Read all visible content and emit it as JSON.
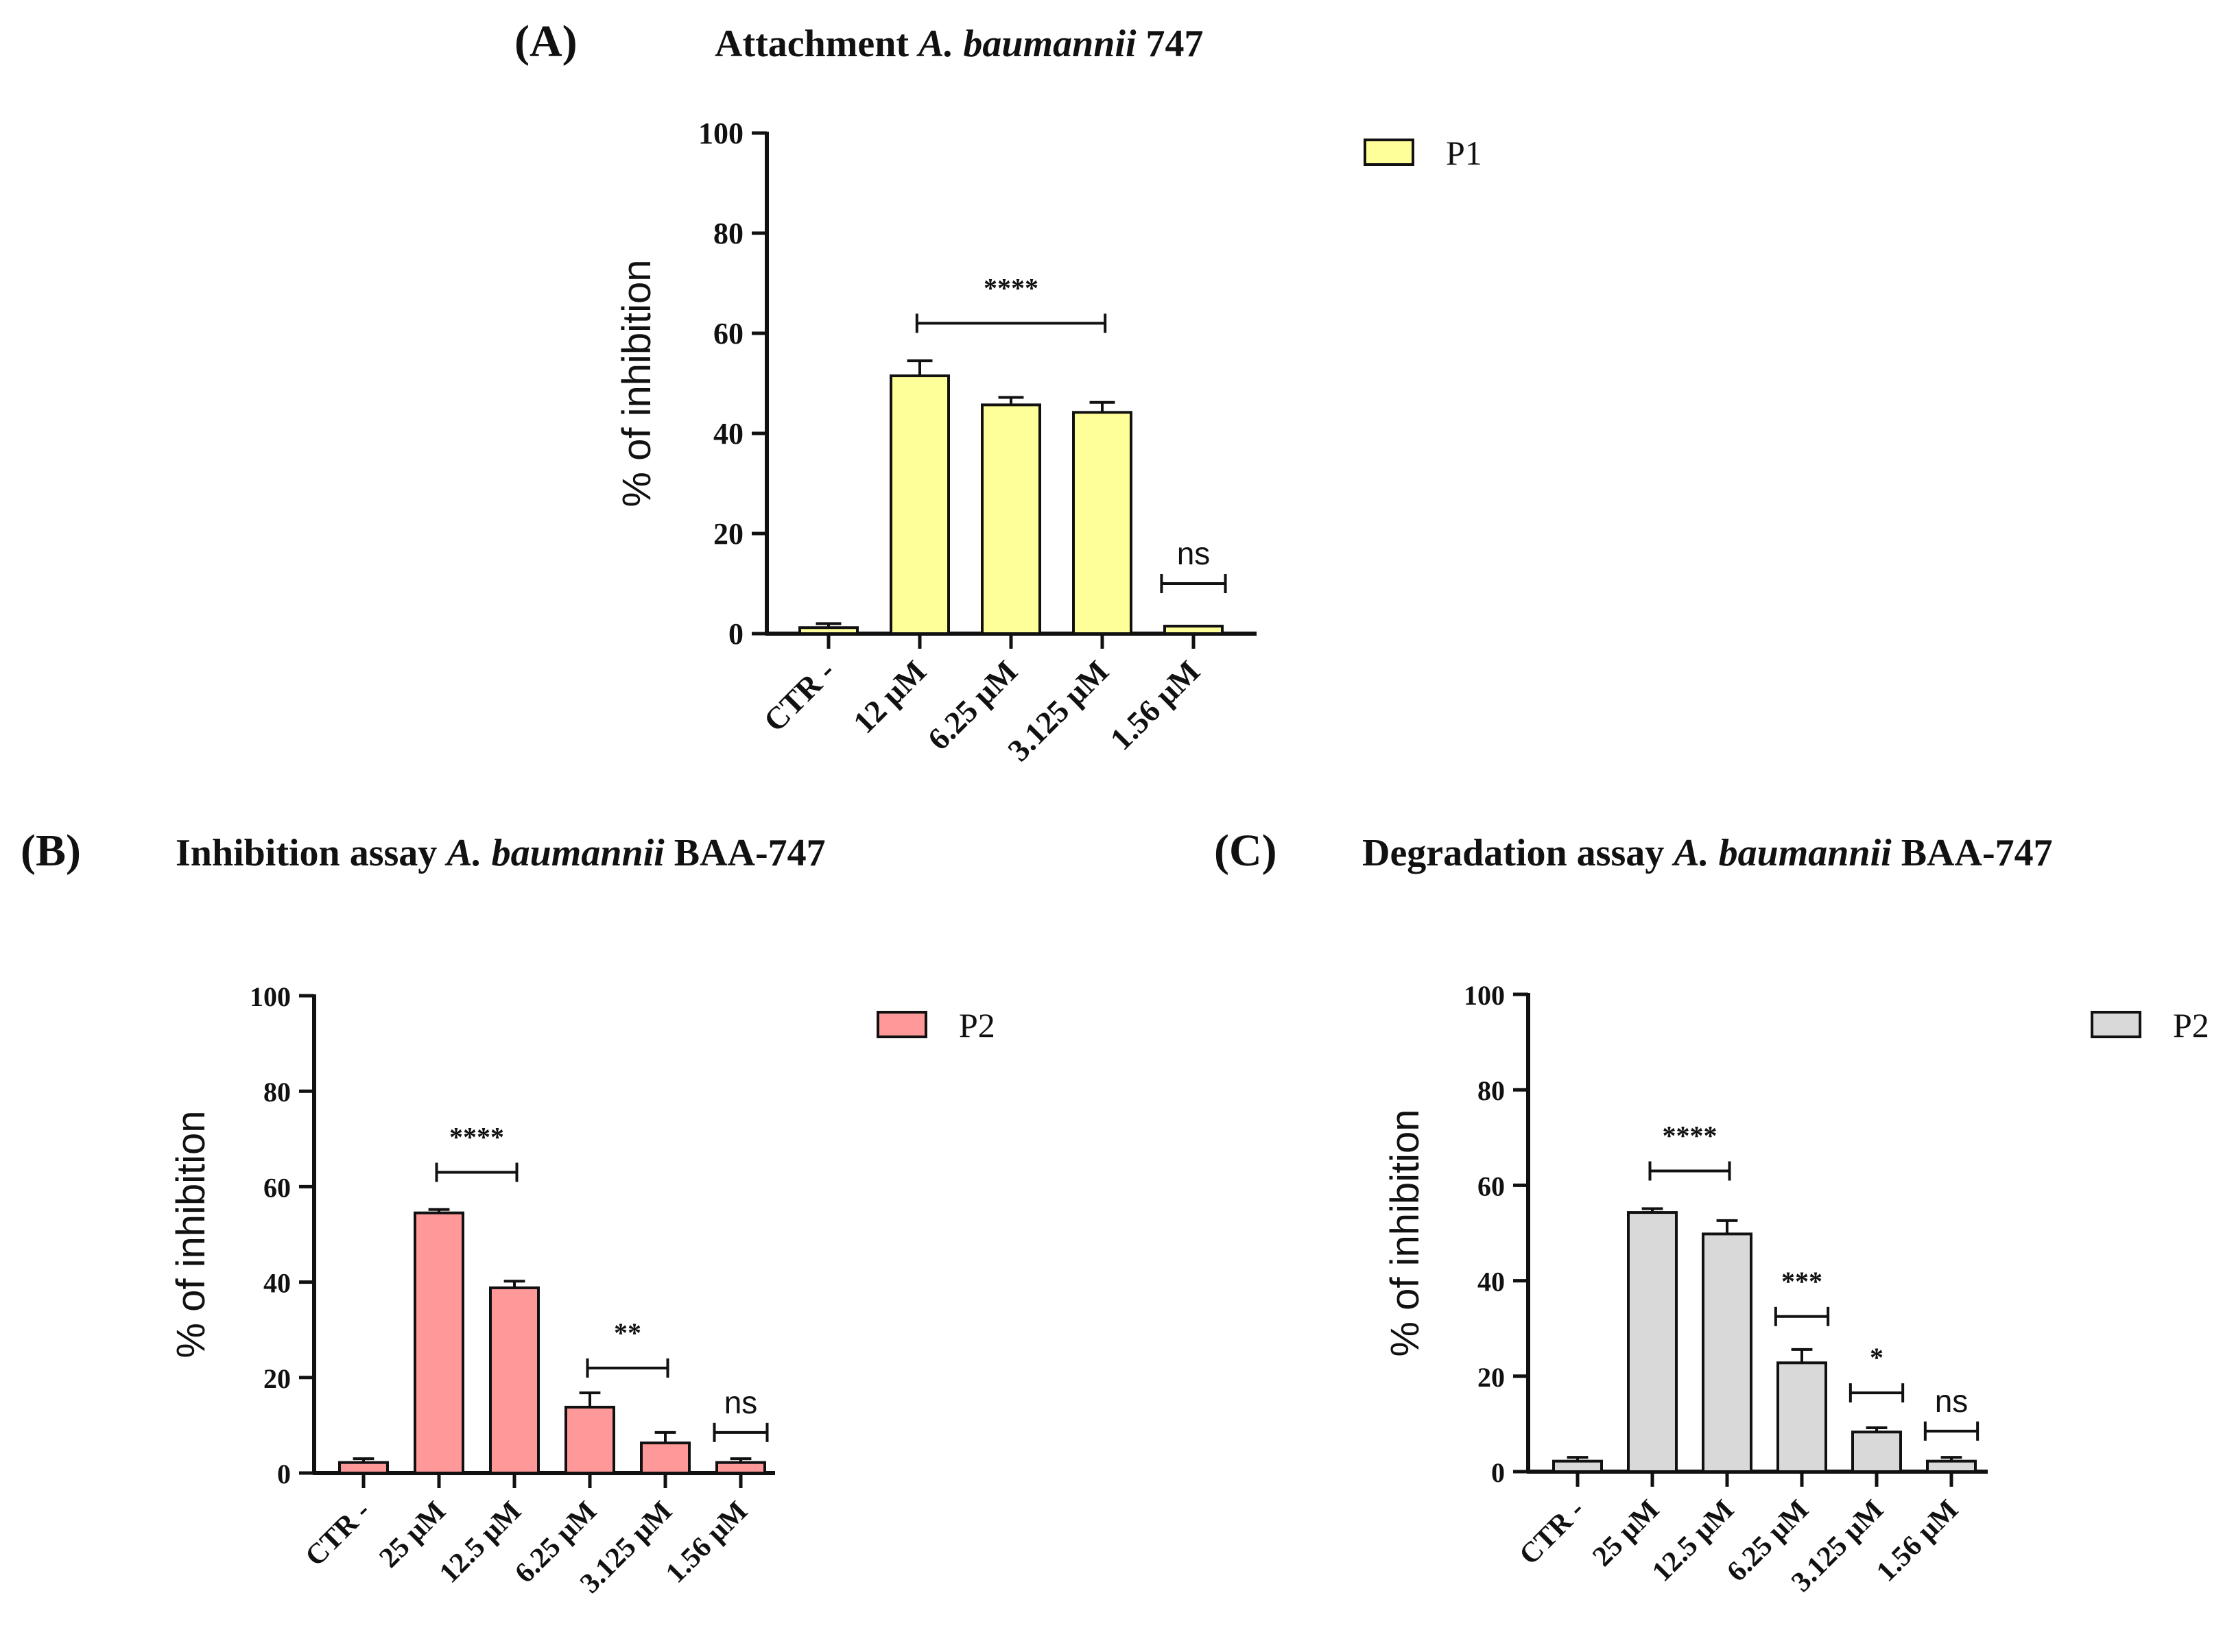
{
  "chart_data": [
    {
      "panel_label": "(A)",
      "title": "Attachment ",
      "title_italic": "A. baumannii",
      "title_suffix": " 747",
      "type": "bar",
      "ylabel": "% of inhibition",
      "ylim": [
        0,
        100
      ],
      "yticks": [
        "0",
        "20",
        "40",
        "60",
        "80",
        "100"
      ],
      "categories": [
        "CTR -",
        "12 µM",
        "6.25 µM",
        "3.125 µM",
        "1.56 µM"
      ],
      "series": [
        {
          "name": "P1",
          "color": "#ffff99",
          "values": [
            1.2,
            51.5,
            45.7,
            44.2,
            1.5
          ],
          "errors": [
            0.8,
            3.0,
            1.5,
            2.0,
            0.0
          ]
        }
      ],
      "legend": "top-right",
      "annotations": [
        {
          "text": "****",
          "from": 1,
          "to": 3,
          "y": 62
        },
        {
          "text": "ns",
          "from": 4,
          "to": 4,
          "y": 10
        }
      ]
    },
    {
      "panel_label": "(B)",
      "title": "Inhibition assay ",
      "title_italic": "A. baumannii",
      "title_suffix": " BAA-747",
      "type": "bar",
      "ylabel": "% of inhibition",
      "ylim": [
        0,
        100
      ],
      "yticks": [
        "0",
        "20",
        "40",
        "60",
        "80",
        "100"
      ],
      "categories": [
        "CTR -",
        "25 µM",
        "12.5 µM",
        "6.25 µM",
        "3.125 µM",
        "1.56 µM"
      ],
      "series": [
        {
          "name": "P2",
          "color": "#ff9999",
          "values": [
            2.2,
            54.5,
            38.8,
            13.8,
            6.3,
            2.2
          ],
          "errors": [
            0.8,
            0.7,
            1.4,
            3.0,
            2.2,
            0.8
          ]
        }
      ],
      "legend": "top-right",
      "annotations": [
        {
          "text": "****",
          "from": 1,
          "to": 2,
          "y": 63
        },
        {
          "text": "**",
          "from": 3,
          "to": 4,
          "y": 22
        },
        {
          "text": "ns",
          "from": 5,
          "to": 5,
          "y": 8.5
        }
      ]
    },
    {
      "panel_label": "(C)",
      "title": "Degradation assay ",
      "title_italic": "A. baumannii",
      "title_suffix": " BAA-747",
      "type": "bar",
      "ylabel": "% of inhibition",
      "ylim": [
        0,
        100
      ],
      "yticks": [
        "0",
        "20",
        "40",
        "60",
        "80",
        "100"
      ],
      "categories": [
        "CTR -",
        "25 µM",
        "12.5 µM",
        "6.25 µM",
        "3.125 µM",
        "1.56 µM"
      ],
      "series": [
        {
          "name": "P2",
          "color": "#d9d9d9",
          "values": [
            2.2,
            54.3,
            49.8,
            22.8,
            8.3,
            2.2
          ],
          "errors": [
            0.8,
            0.8,
            2.8,
            2.8,
            0.9,
            0.8
          ]
        }
      ],
      "legend": "top-right",
      "annotations": [
        {
          "text": "****",
          "from": 1,
          "to": 2,
          "y": 63
        },
        {
          "text": "***",
          "from": 3,
          "to": 3,
          "y": 32.5
        },
        {
          "text": "*",
          "from": 4,
          "to": 4,
          "y": 16.5
        },
        {
          "text": "ns",
          "from": 5,
          "to": 5,
          "y": 8.5
        }
      ]
    }
  ]
}
